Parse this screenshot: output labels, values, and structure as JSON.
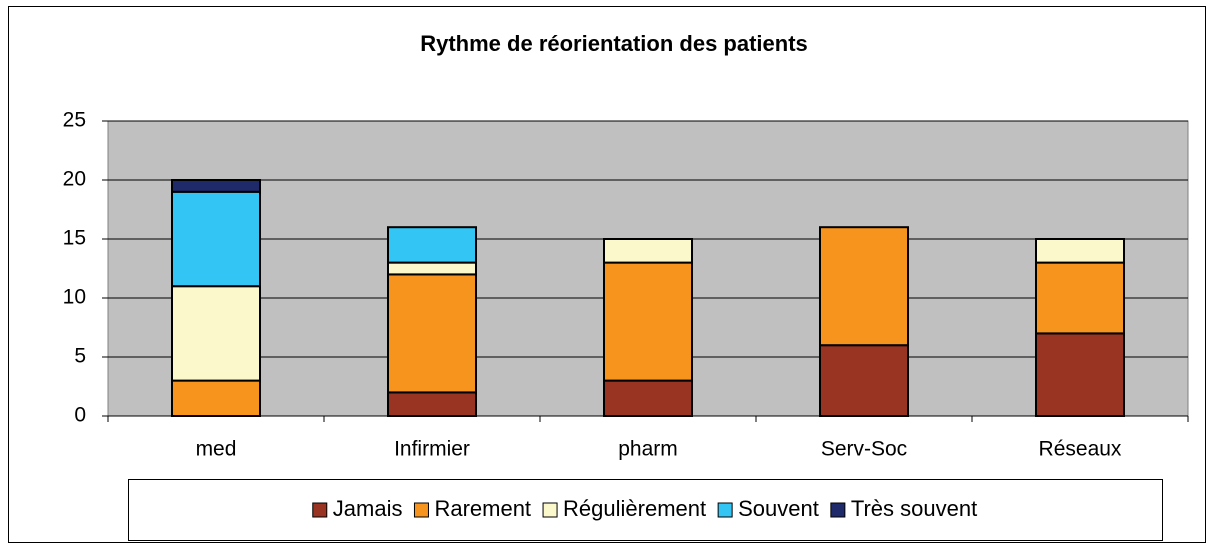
{
  "chart_data": {
    "type": "stacked_bar",
    "title": "Rythme de réorientation des patients",
    "categories": [
      "med",
      "Infirmier",
      "pharm",
      "Serv-Soc",
      "Réseaux"
    ],
    "series": [
      {
        "name": "Jamais",
        "color": "#993322",
        "values": [
          0,
          2,
          3,
          6,
          7
        ]
      },
      {
        "name": "Rarement",
        "color": "#f7941d",
        "values": [
          3,
          10,
          10,
          10,
          6
        ]
      },
      {
        "name": "Régulièrement",
        "color": "#fbf8cc",
        "values": [
          8,
          1,
          2,
          0,
          2
        ]
      },
      {
        "name": "Souvent",
        "color": "#33c6f4",
        "values": [
          8,
          3,
          0,
          0,
          0
        ]
      },
      {
        "name": "Très souvent",
        "color": "#1f2a6b",
        "values": [
          1,
          0,
          0,
          0,
          0
        ]
      }
    ],
    "ylim": [
      0,
      25
    ],
    "yticks": [
      0,
      5,
      10,
      15,
      20,
      25
    ],
    "grid": true,
    "legend": "bottom"
  }
}
